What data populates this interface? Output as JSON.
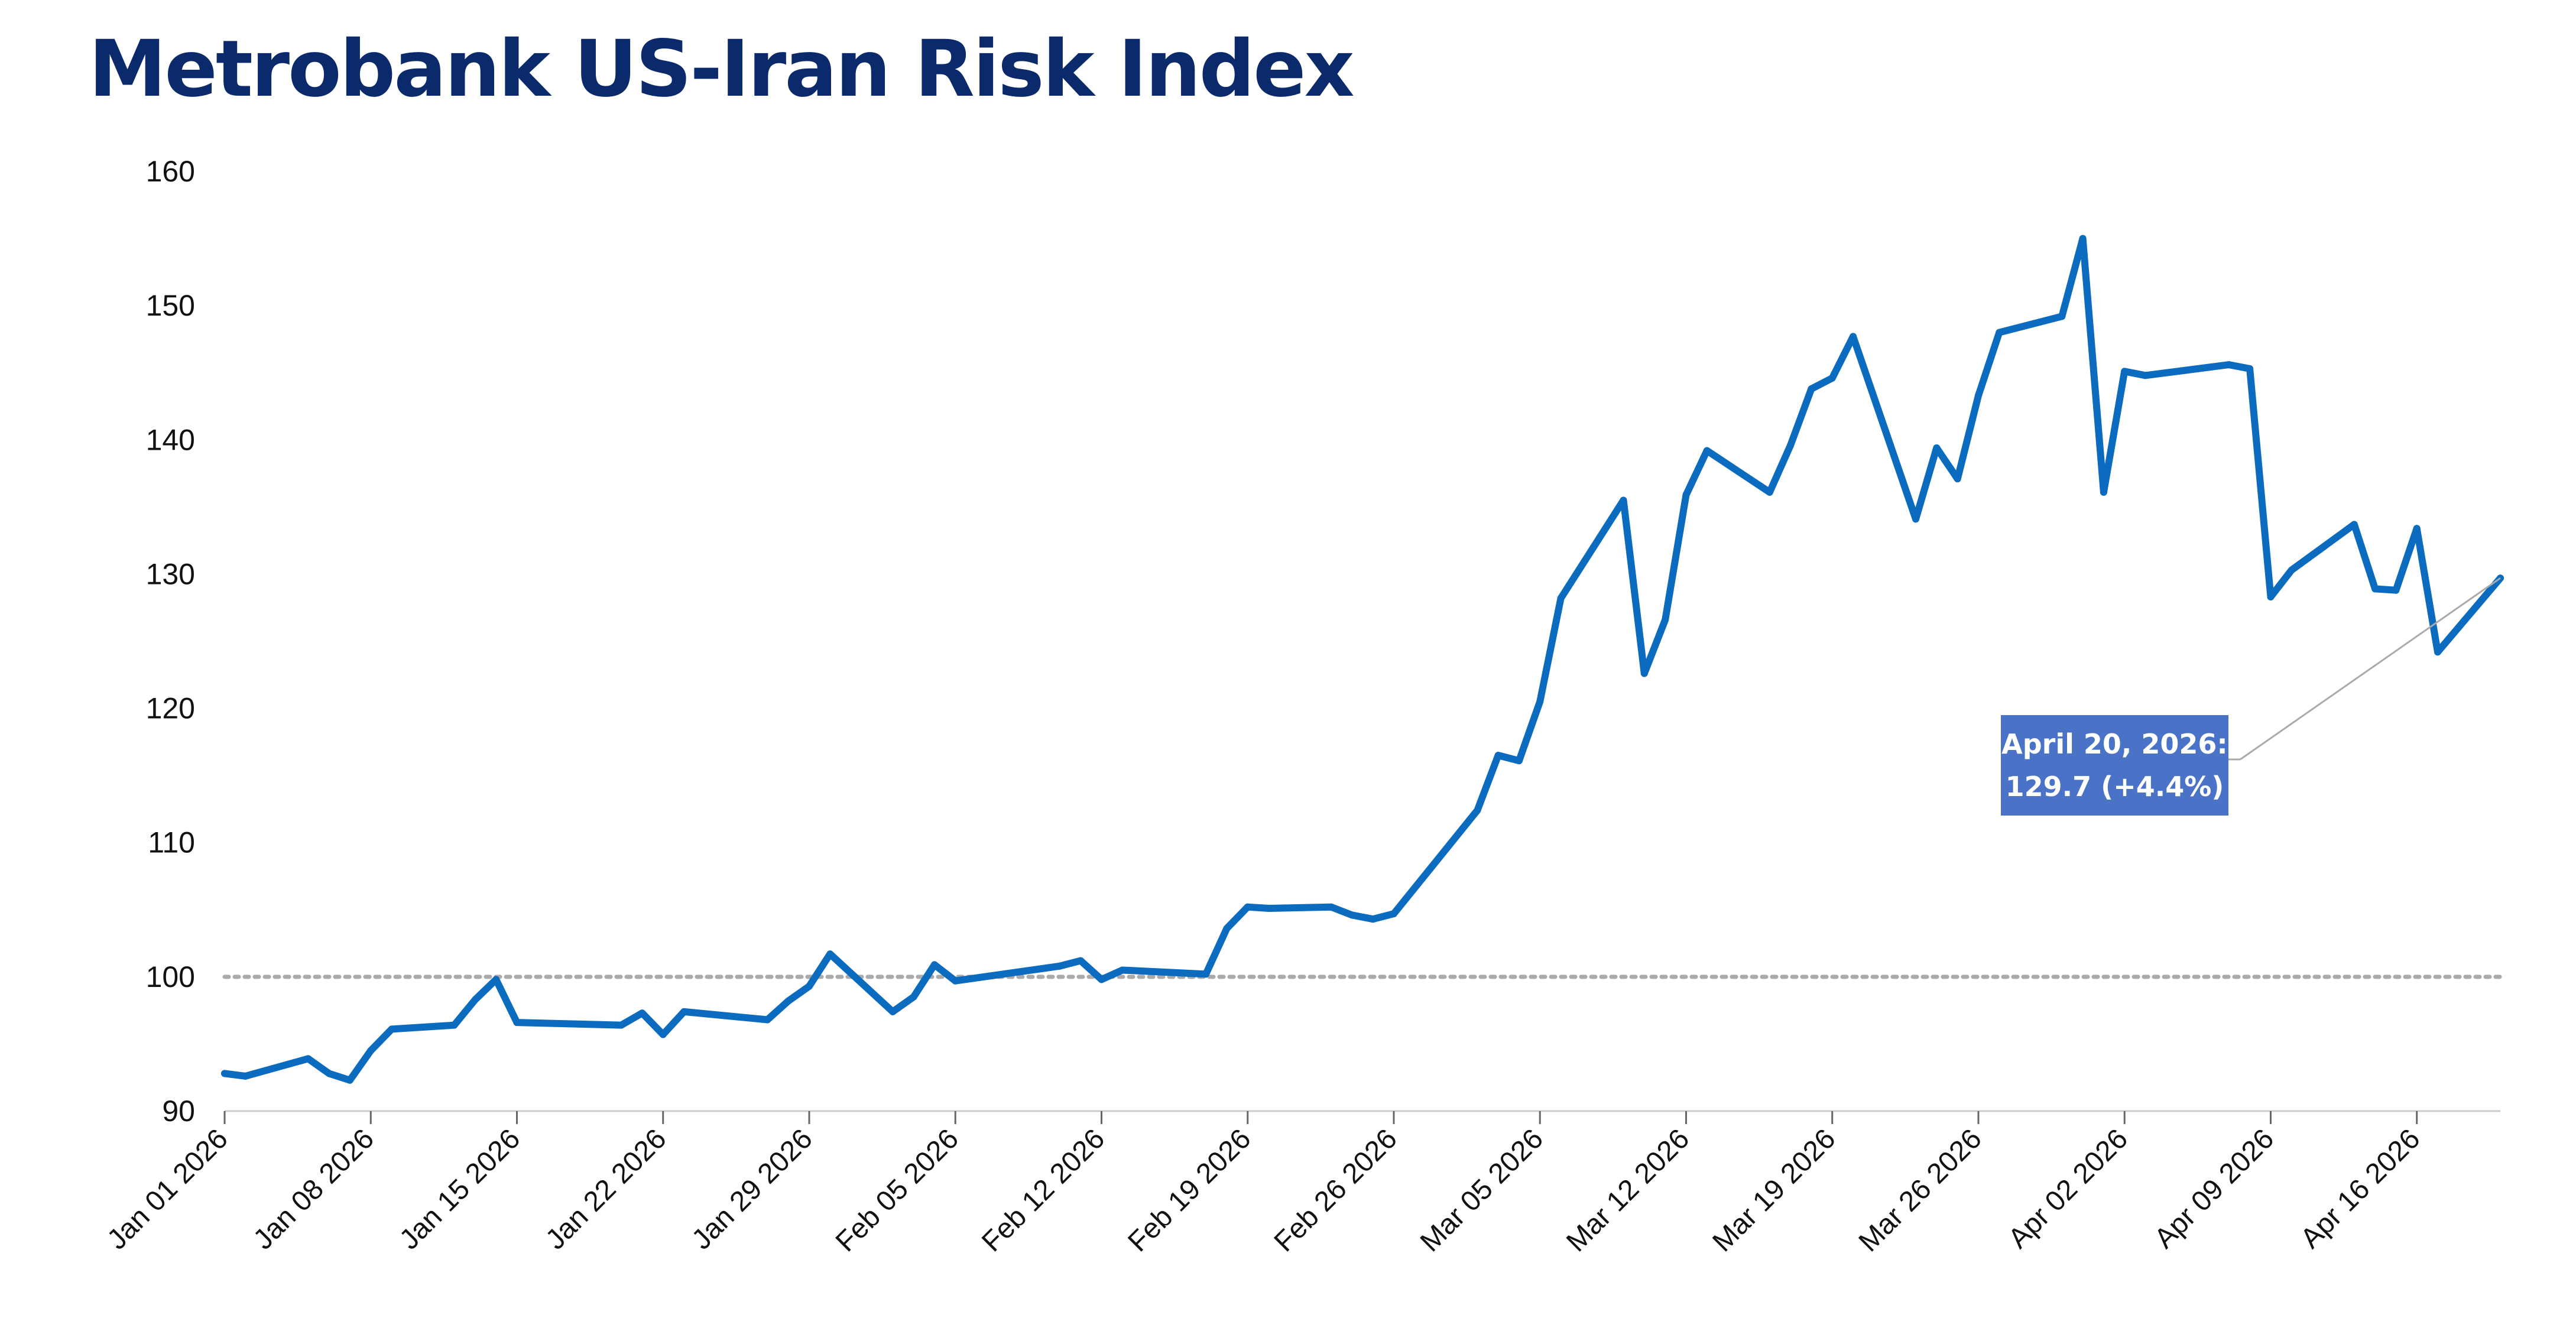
{
  "title": "Metrobank US-Iran Risk Index",
  "colors": {
    "line": "#0b6bbf",
    "title": "#0a2a6b",
    "callout_bg": "#4a72c6",
    "baseline": "#aaaaaa",
    "axis": "#cccccc"
  },
  "annotation": {
    "line1": "April 20, 2026:",
    "line2": "129.7  (+4.4%)",
    "x": "2026-04-20",
    "y": 129.7
  },
  "chart_data": {
    "type": "line",
    "title": "Metrobank US-Iran Risk Index",
    "xlabel": "",
    "ylabel": "",
    "ylim": [
      90,
      160
    ],
    "xlim": [
      "2026-01-01",
      "2026-04-20"
    ],
    "yticks": [
      "90",
      "100",
      "110",
      "120",
      "130",
      "140",
      "150",
      "160"
    ],
    "xticks": [
      "Jan 01 2026",
      "Jan 08 2026",
      "Jan 15 2026",
      "Jan 22 2026",
      "Jan 29 2026",
      "Feb 05 2026",
      "Feb 12 2026",
      "Feb 19 2026",
      "Feb 26 2026",
      "Mar 05 2026",
      "Mar 12 2026",
      "Mar 19 2026",
      "Mar 26 2026",
      "Apr 02 2026",
      "Apr 09 2026",
      "Apr 16 2026"
    ],
    "reference_line": 100,
    "grid": false,
    "legend": "none",
    "series": [
      {
        "x": [
          "2026-01-01",
          "2026-01-02",
          "2026-01-05",
          "2026-01-06",
          "2026-01-07",
          "2026-01-08",
          "2026-01-09",
          "2026-01-12",
          "2026-01-13",
          "2026-01-14",
          "2026-01-15",
          "2026-01-20",
          "2026-01-21",
          "2026-01-22",
          "2026-01-23",
          "2026-01-27",
          "2026-01-28",
          "2026-01-29",
          "2026-01-30",
          "2026-02-02",
          "2026-02-03",
          "2026-02-04",
          "2026-02-05",
          "2026-02-10",
          "2026-02-11",
          "2026-02-12",
          "2026-02-13",
          "2026-02-17",
          "2026-02-18",
          "2026-02-19",
          "2026-02-20",
          "2026-02-23",
          "2026-02-24",
          "2026-02-25",
          "2026-02-26",
          "2026-03-02",
          "2026-03-03",
          "2026-03-04",
          "2026-03-05",
          "2026-03-06",
          "2026-03-09",
          "2026-03-10",
          "2026-03-11",
          "2026-03-12",
          "2026-03-13",
          "2026-03-16",
          "2026-03-17",
          "2026-03-18",
          "2026-03-19",
          "2026-03-20",
          "2026-03-23",
          "2026-03-24",
          "2026-03-25",
          "2026-03-26",
          "2026-03-27",
          "2026-03-30",
          "2026-03-31",
          "2026-04-01",
          "2026-04-02",
          "2026-04-03",
          "2026-04-07",
          "2026-04-08",
          "2026-04-09",
          "2026-04-10",
          "2026-04-13",
          "2026-04-14",
          "2026-04-15",
          "2026-04-16",
          "2026-04-17",
          "2026-04-20"
        ],
        "values": [
          92.8,
          92.6,
          93.9,
          92.8,
          92.3,
          94.5,
          96.1,
          96.4,
          98.3,
          99.8,
          96.6,
          96.4,
          97.3,
          95.7,
          97.4,
          96.8,
          98.2,
          99.3,
          101.7,
          97.4,
          98.5,
          100.9,
          99.7,
          100.8,
          101.2,
          99.8,
          100.5,
          100.2,
          103.6,
          105.2,
          105.1,
          105.2,
          104.6,
          104.3,
          104.7,
          112.4,
          116.5,
          116.1,
          120.5,
          128.2,
          135.5,
          122.6,
          126.6,
          135.9,
          139.2,
          136.1,
          139.6,
          143.8,
          144.6,
          147.7,
          134.1,
          139.4,
          137.1,
          143.3,
          148.0,
          149.2,
          155.0,
          136.1,
          145.1,
          144.8,
          145.6,
          145.3,
          128.3,
          130.3,
          133.7,
          128.9,
          128.8,
          133.4,
          124.2,
          129.7
        ]
      }
    ]
  }
}
